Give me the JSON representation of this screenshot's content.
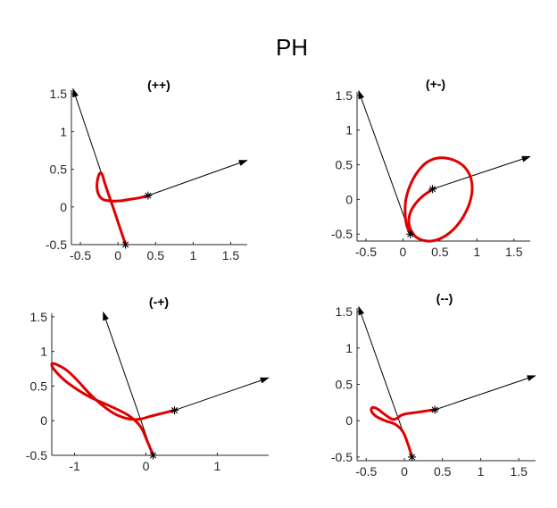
{
  "figure": {
    "title": "PH"
  },
  "chart_data": [
    {
      "type": "line",
      "title": "(++)",
      "xlim": [
        -0.62,
        1.72
      ],
      "ylim": [
        -0.5,
        1.55
      ],
      "xticks": [
        -0.5,
        0,
        0.5,
        1,
        1.5
      ],
      "xtick_labels": [
        "-0.5",
        "0",
        "0.5",
        "1",
        "1.5"
      ],
      "yticks": [
        -0.5,
        0,
        0.5,
        1,
        1.5
      ],
      "ytick_labels": [
        "-0.5",
        "0",
        "0.5",
        "1",
        "1.5"
      ],
      "markers": [
        [
          0.1,
          -0.5
        ],
        [
          0.4,
          0.15
        ]
      ],
      "vectors": [
        {
          "from": [
            0.1,
            -0.5
          ],
          "to": [
            -0.6,
            1.57
          ]
        },
        {
          "from": [
            0.4,
            0.15
          ],
          "to": [
            1.72,
            0.62
          ]
        }
      ],
      "curve": {
        "x": [
          0.1,
          0.02,
          -0.06,
          -0.13,
          -0.18,
          -0.21,
          -0.24,
          -0.27,
          -0.28,
          -0.26,
          -0.2,
          -0.1,
          0.02,
          0.15,
          0.28,
          0.4
        ],
        "y": [
          -0.5,
          -0.26,
          -0.02,
          0.18,
          0.33,
          0.43,
          0.45,
          0.37,
          0.27,
          0.17,
          0.1,
          0.08,
          0.08,
          0.1,
          0.12,
          0.15
        ]
      }
    },
    {
      "type": "line",
      "title": "(+-)",
      "xlim": [
        -0.62,
        1.72
      ],
      "ylim": [
        -0.6,
        1.55
      ],
      "xticks": [
        -0.5,
        0,
        0.5,
        1,
        1.5
      ],
      "xtick_labels": [
        "-0.5",
        "0",
        "0.5",
        "1",
        "1.5"
      ],
      "yticks": [
        -0.5,
        0,
        0.5,
        1,
        1.5
      ],
      "ytick_labels": [
        "-0.5",
        "0",
        "0.5",
        "1",
        "1.5"
      ],
      "markers": [
        [
          0.1,
          -0.5
        ],
        [
          0.4,
          0.15
        ]
      ],
      "vectors": [
        {
          "from": [
            0.1,
            -0.5
          ],
          "to": [
            -0.6,
            1.57
          ]
        },
        {
          "from": [
            0.4,
            0.15
          ],
          "to": [
            1.72,
            0.62
          ]
        }
      ],
      "curve": {
        "x": [
          0.1,
          0.05,
          0.03,
          0.04,
          0.1,
          0.2,
          0.33,
          0.5,
          0.68,
          0.83,
          0.92,
          0.93,
          0.86,
          0.72,
          0.55,
          0.38,
          0.22,
          0.12,
          0.08,
          0.1,
          0.17,
          0.27,
          0.35,
          0.4
        ],
        "y": [
          -0.5,
          -0.37,
          -0.2,
          0.0,
          0.21,
          0.4,
          0.54,
          0.6,
          0.57,
          0.47,
          0.3,
          0.08,
          -0.16,
          -0.39,
          -0.54,
          -0.6,
          -0.57,
          -0.47,
          -0.33,
          -0.19,
          -0.06,
          0.05,
          0.11,
          0.15
        ]
      }
    },
    {
      "type": "line",
      "title": "(-+)",
      "xlim": [
        -1.32,
        1.72
      ],
      "ylim": [
        -0.5,
        1.55
      ],
      "xticks": [
        -1,
        0,
        1
      ],
      "xtick_labels": [
        "-1",
        "0",
        "1"
      ],
      "yticks": [
        -0.5,
        0,
        0.5,
        1,
        1.5
      ],
      "ytick_labels": [
        "-0.5",
        "0",
        "0.5",
        "1",
        "1.5"
      ],
      "markers": [
        [
          0.1,
          -0.5
        ],
        [
          0.4,
          0.15
        ]
      ],
      "vectors": [
        {
          "from": [
            0.1,
            -0.5
          ],
          "to": [
            -0.6,
            1.57
          ]
        },
        {
          "from": [
            0.4,
            0.15
          ],
          "to": [
            1.72,
            0.62
          ]
        }
      ],
      "curve": {
        "x": [
          0.1,
          0.02,
          -0.08,
          -0.25,
          -0.5,
          -0.8,
          -1.1,
          -1.28,
          -1.32,
          -1.25,
          -1.1,
          -0.95,
          -0.8,
          -0.62,
          -0.44,
          -0.26,
          -0.1,
          0.05,
          0.2,
          0.32,
          0.4
        ],
        "y": [
          -0.5,
          -0.3,
          -0.08,
          0.08,
          0.21,
          0.35,
          0.55,
          0.73,
          0.82,
          0.81,
          0.72,
          0.57,
          0.4,
          0.23,
          0.1,
          0.03,
          0.02,
          0.06,
          0.1,
          0.13,
          0.15
        ]
      }
    },
    {
      "type": "line",
      "title": "(--)",
      "xlim": [
        -0.62,
        1.72
      ],
      "ylim": [
        -0.55,
        1.55
      ],
      "xticks": [
        -0.5,
        0,
        0.5,
        1,
        1.5
      ],
      "xtick_labels": [
        "-0.5",
        "0",
        "0.5",
        "1",
        "1.5"
      ],
      "yticks": [
        -0.5,
        0,
        0.5,
        1,
        1.5
      ],
      "ytick_labels": [
        "-0.5",
        "0",
        "0.5",
        "1",
        "1.5"
      ],
      "markers": [
        [
          0.1,
          -0.5
        ],
        [
          0.4,
          0.15
        ]
      ],
      "vectors": [
        {
          "from": [
            0.1,
            -0.5
          ],
          "to": [
            -0.6,
            1.57
          ]
        },
        {
          "from": [
            0.4,
            0.15
          ],
          "to": [
            1.72,
            0.62
          ]
        }
      ],
      "curve": {
        "x": [
          0.1,
          0.05,
          -0.02,
          -0.12,
          -0.25,
          -0.37,
          -0.43,
          -0.42,
          -0.35,
          -0.25,
          -0.16,
          -0.1,
          -0.05,
          0.0,
          0.05,
          0.2,
          0.32,
          0.4
        ],
        "y": [
          -0.5,
          -0.33,
          -0.15,
          -0.05,
          0.0,
          0.06,
          0.13,
          0.18,
          0.16,
          0.08,
          0.02,
          0.03,
          0.07,
          0.09,
          0.1,
          0.12,
          0.14,
          0.15
        ]
      }
    }
  ]
}
